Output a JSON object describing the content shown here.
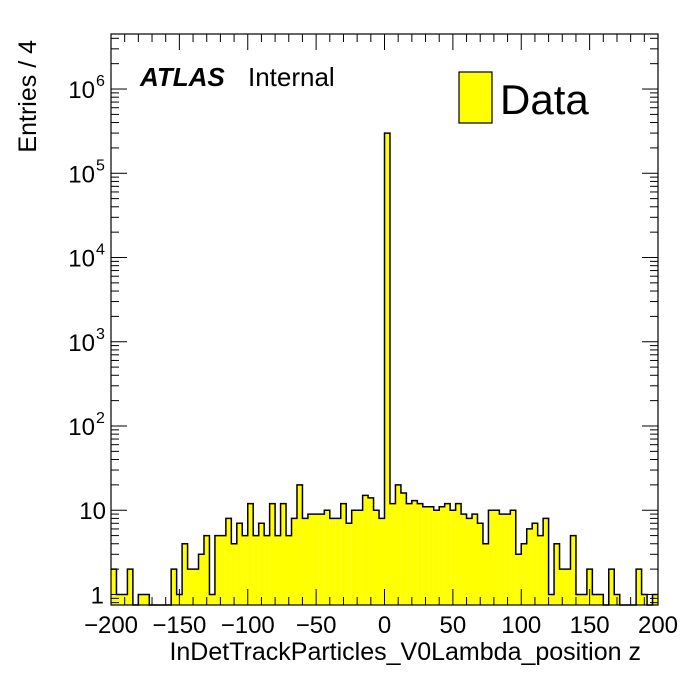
{
  "chart_data": {
    "type": "bar",
    "title": "",
    "xlabel": "InDetTrackParticles_V0Lambda_position z",
    "ylabel": "Entries / 4",
    "xlim": [
      -200,
      200
    ],
    "ylim": [
      0.75,
      4500000
    ],
    "yscale": "log",
    "bin_width": 4,
    "x_ticks": [
      "−200",
      "−150",
      "−100",
      "−50",
      "0",
      "50",
      "100",
      "150",
      "200"
    ],
    "y_ticks": [
      {
        "base": "1",
        "exp": ""
      },
      {
        "base": "10",
        "exp": ""
      },
      {
        "base": "10",
        "exp": "2"
      },
      {
        "base": "10",
        "exp": "3"
      },
      {
        "base": "10",
        "exp": "4"
      },
      {
        "base": "10",
        "exp": "5"
      },
      {
        "base": "10",
        "exp": "6"
      }
    ],
    "fill_color": "#ffff00",
    "line_color": "#000000",
    "legend": {
      "label": "Data",
      "position": "top-right"
    },
    "atlas_label": "ATLAS",
    "atlas_status": "Internal",
    "series": [
      {
        "name": "Data",
        "bin_centers": [
          -198,
          -194,
          -190,
          -186,
          -182,
          -178,
          -174,
          -170,
          -166,
          -162,
          -158,
          -154,
          -150,
          -146,
          -142,
          -138,
          -134,
          -130,
          -126,
          -122,
          -118,
          -114,
          -110,
          -106,
          -102,
          -98,
          -94,
          -90,
          -86,
          -82,
          -78,
          -74,
          -70,
          -66,
          -62,
          -58,
          -54,
          -50,
          -46,
          -42,
          -38,
          -34,
          -30,
          -26,
          -22,
          -18,
          -14,
          -10,
          -6,
          -2,
          2,
          6,
          10,
          14,
          18,
          22,
          26,
          30,
          34,
          38,
          42,
          46,
          50,
          54,
          58,
          62,
          66,
          70,
          74,
          78,
          82,
          86,
          90,
          94,
          98,
          102,
          106,
          110,
          114,
          118,
          122,
          126,
          130,
          134,
          138,
          142,
          146,
          150,
          154,
          158,
          162,
          166,
          170,
          174,
          178,
          182,
          186,
          190,
          194,
          198
        ],
        "values": [
          2,
          1,
          1,
          2,
          0,
          1,
          1,
          0,
          0,
          0,
          0,
          2,
          1,
          4,
          2,
          2,
          3,
          5,
          1,
          5,
          5,
          8,
          4,
          7,
          5,
          12,
          5,
          7,
          5,
          12,
          5,
          12,
          5,
          8,
          20,
          8,
          9,
          9,
          9,
          10,
          8,
          8,
          12,
          7,
          10,
          10,
          15,
          14,
          10,
          8,
          300000,
          12,
          20,
          16,
          12,
          13,
          12,
          11,
          11,
          10,
          11,
          12,
          10,
          12,
          9,
          8,
          9,
          7,
          4,
          10,
          10,
          9,
          9,
          10,
          3,
          4,
          6,
          7,
          5,
          8,
          1,
          4,
          2,
          2,
          5,
          1,
          1,
          2,
          1,
          1,
          0,
          2,
          1,
          0,
          0,
          0,
          2,
          1,
          0,
          1
        ]
      }
    ]
  }
}
